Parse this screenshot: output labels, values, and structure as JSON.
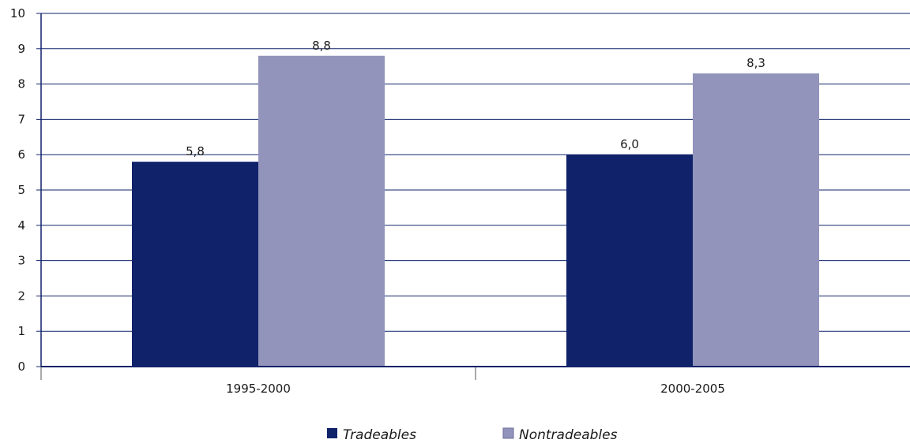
{
  "colors": {
    "tradeables": "#10226a",
    "nontradeables": "#9294bb",
    "axis": "#10226a",
    "grid": "#10226a"
  },
  "chart_data": {
    "type": "bar",
    "categories": [
      "1995-2000",
      "2000-2005"
    ],
    "series": [
      {
        "name": "Tradeables",
        "values": [
          5.8,
          6.0
        ],
        "labels": [
          "5,8",
          "6,0"
        ]
      },
      {
        "name": "Nontradeables",
        "values": [
          8.8,
          8.3
        ],
        "labels": [
          "8,8",
          "8,3"
        ]
      }
    ],
    "yticks": [
      "0",
      "1",
      "2",
      "3",
      "4",
      "5",
      "6",
      "7",
      "8",
      "9",
      "10"
    ],
    "ylim": [
      0,
      10
    ],
    "grid": true,
    "legend": "bottom-center"
  }
}
